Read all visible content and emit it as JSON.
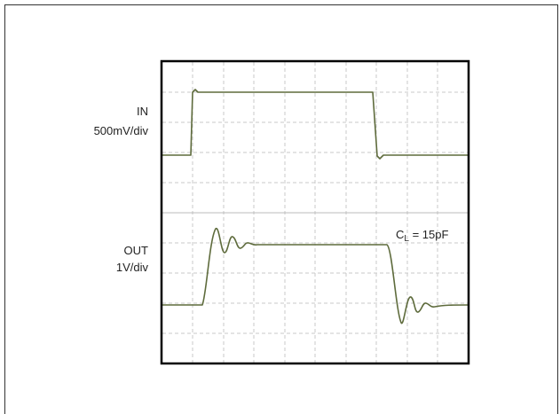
{
  "traces": {
    "in": {
      "name": "IN",
      "scale": "500mV/div"
    },
    "out": {
      "name": "OUT",
      "scale": "1V/div"
    }
  },
  "annotation": {
    "symbol": "C",
    "subscript": "L",
    "rest": " = 15pF"
  }
}
